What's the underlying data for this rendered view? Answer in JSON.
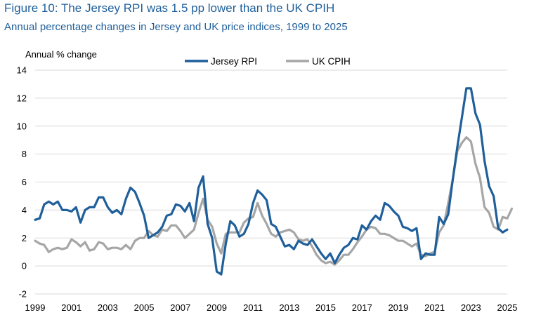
{
  "header": {
    "title": "Figure 10: The Jersey RPI was 1.5 pp lower than the UK CPIH",
    "subtitle": "Annual percentage changes in Jersey and UK price indices, 1999 to 2025"
  },
  "colors": {
    "title": "#1f5f9a",
    "jersey_rpi": "#1f5f9a",
    "uk_cpih": "#a6a6a6"
  },
  "chart_data": {
    "type": "line",
    "title": "Figure 10: The Jersey RPI was 1.5 pp lower than the UK CPIH",
    "subtitle": "Annual percentage changes in Jersey and UK price indices, 1999 to 2025",
    "ylabel": "Annual % change",
    "xlabel": "",
    "ylim": [
      -2,
      14
    ],
    "xlim": [
      1999,
      2025
    ],
    "yticks": [
      "-2",
      "0",
      "2",
      "4",
      "6",
      "8",
      "10",
      "12",
      "14"
    ],
    "xticks": [
      "1999",
      "2001",
      "2003",
      "2005",
      "2007",
      "2009",
      "2011",
      "2013",
      "2015",
      "2017",
      "2019",
      "2021",
      "2023",
      "2025"
    ],
    "grid": true,
    "legend_position": "top",
    "series": [
      {
        "name": "Jersey RPI",
        "color": "#1f5f9a",
        "points": [
          [
            1999.0,
            3.3
          ],
          [
            1999.25,
            3.4
          ],
          [
            1999.5,
            4.4
          ],
          [
            1999.75,
            4.6
          ],
          [
            2000.0,
            4.4
          ],
          [
            2000.25,
            4.6
          ],
          [
            2000.5,
            4.0
          ],
          [
            2000.75,
            4.0
          ],
          [
            2001.0,
            3.9
          ],
          [
            2001.25,
            4.2
          ],
          [
            2001.5,
            3.1
          ],
          [
            2001.75,
            4.0
          ],
          [
            2002.0,
            4.2
          ],
          [
            2002.25,
            4.2
          ],
          [
            2002.5,
            4.9
          ],
          [
            2002.75,
            4.9
          ],
          [
            2003.0,
            4.2
          ],
          [
            2003.25,
            3.8
          ],
          [
            2003.5,
            4.0
          ],
          [
            2003.75,
            3.7
          ],
          [
            2004.0,
            4.8
          ],
          [
            2004.25,
            5.6
          ],
          [
            2004.5,
            5.3
          ],
          [
            2004.75,
            4.5
          ],
          [
            2005.0,
            3.6
          ],
          [
            2005.25,
            2.0
          ],
          [
            2005.5,
            2.2
          ],
          [
            2005.75,
            2.4
          ],
          [
            2006.0,
            2.8
          ],
          [
            2006.25,
            3.6
          ],
          [
            2006.5,
            3.7
          ],
          [
            2006.75,
            4.4
          ],
          [
            2007.0,
            4.3
          ],
          [
            2007.25,
            3.9
          ],
          [
            2007.5,
            4.5
          ],
          [
            2007.75,
            3.2
          ],
          [
            2008.0,
            5.6
          ],
          [
            2008.25,
            6.4
          ],
          [
            2008.5,
            3.0
          ],
          [
            2008.75,
            2.0
          ],
          [
            2009.0,
            -0.4
          ],
          [
            2009.25,
            -0.6
          ],
          [
            2009.5,
            1.6
          ],
          [
            2009.75,
            3.2
          ],
          [
            2010.0,
            2.9
          ],
          [
            2010.25,
            2.1
          ],
          [
            2010.5,
            2.3
          ],
          [
            2010.75,
            3.0
          ],
          [
            2011.0,
            4.5
          ],
          [
            2011.25,
            5.4
          ],
          [
            2011.5,
            5.1
          ],
          [
            2011.75,
            4.7
          ],
          [
            2012.0,
            3.0
          ],
          [
            2012.25,
            2.8
          ],
          [
            2012.5,
            2.1
          ],
          [
            2012.75,
            1.4
          ],
          [
            2013.0,
            1.5
          ],
          [
            2013.25,
            1.2
          ],
          [
            2013.5,
            1.8
          ],
          [
            2013.75,
            1.6
          ],
          [
            2014.0,
            1.5
          ],
          [
            2014.25,
            1.9
          ],
          [
            2014.5,
            1.4
          ],
          [
            2014.75,
            0.9
          ],
          [
            2015.0,
            0.5
          ],
          [
            2015.25,
            0.9
          ],
          [
            2015.5,
            0.2
          ],
          [
            2015.75,
            0.8
          ],
          [
            2016.0,
            1.3
          ],
          [
            2016.25,
            1.5
          ],
          [
            2016.5,
            2.0
          ],
          [
            2016.75,
            1.9
          ],
          [
            2017.0,
            2.9
          ],
          [
            2017.25,
            2.6
          ],
          [
            2017.5,
            3.2
          ],
          [
            2017.75,
            3.6
          ],
          [
            2018.0,
            3.3
          ],
          [
            2018.25,
            4.5
          ],
          [
            2018.5,
            4.3
          ],
          [
            2018.75,
            3.9
          ],
          [
            2019.0,
            3.6
          ],
          [
            2019.25,
            2.8
          ],
          [
            2019.5,
            2.7
          ],
          [
            2019.75,
            2.5
          ],
          [
            2020.0,
            2.7
          ],
          [
            2020.25,
            0.5
          ],
          [
            2020.5,
            0.9
          ],
          [
            2020.75,
            0.8
          ],
          [
            2021.0,
            0.8
          ],
          [
            2021.25,
            3.5
          ],
          [
            2021.5,
            3.0
          ],
          [
            2021.75,
            3.7
          ],
          [
            2022.0,
            6.2
          ],
          [
            2022.25,
            8.5
          ],
          [
            2022.5,
            10.6
          ],
          [
            2022.75,
            12.7
          ],
          [
            2023.0,
            12.7
          ],
          [
            2023.25,
            10.9
          ],
          [
            2023.5,
            10.1
          ],
          [
            2023.75,
            7.5
          ],
          [
            2024.0,
            5.7
          ],
          [
            2024.25,
            5.0
          ],
          [
            2024.5,
            2.7
          ],
          [
            2024.75,
            2.4
          ],
          [
            2025.0,
            2.6
          ]
        ]
      },
      {
        "name": "UK CPIH",
        "color": "#a6a6a6",
        "points": [
          [
            1999.0,
            1.8
          ],
          [
            1999.25,
            1.6
          ],
          [
            1999.5,
            1.5
          ],
          [
            1999.75,
            1.0
          ],
          [
            2000.0,
            1.2
          ],
          [
            2000.25,
            1.3
          ],
          [
            2000.5,
            1.2
          ],
          [
            2000.75,
            1.3
          ],
          [
            2001.0,
            1.9
          ],
          [
            2001.25,
            1.7
          ],
          [
            2001.5,
            1.4
          ],
          [
            2001.75,
            1.7
          ],
          [
            2002.0,
            1.1
          ],
          [
            2002.25,
            1.2
          ],
          [
            2002.5,
            1.7
          ],
          [
            2002.75,
            1.6
          ],
          [
            2003.0,
            1.2
          ],
          [
            2003.25,
            1.3
          ],
          [
            2003.5,
            1.3
          ],
          [
            2003.75,
            1.2
          ],
          [
            2004.0,
            1.5
          ],
          [
            2004.25,
            1.2
          ],
          [
            2004.5,
            1.8
          ],
          [
            2004.75,
            2.0
          ],
          [
            2005.0,
            2.0
          ],
          [
            2005.25,
            2.5
          ],
          [
            2005.5,
            2.2
          ],
          [
            2005.75,
            2.1
          ],
          [
            2006.0,
            2.6
          ],
          [
            2006.25,
            2.5
          ],
          [
            2006.5,
            2.9
          ],
          [
            2006.75,
            2.9
          ],
          [
            2007.0,
            2.5
          ],
          [
            2007.25,
            2.0
          ],
          [
            2007.5,
            2.3
          ],
          [
            2007.75,
            2.6
          ],
          [
            2008.0,
            3.8
          ],
          [
            2008.25,
            4.8
          ],
          [
            2008.5,
            3.3
          ],
          [
            2008.75,
            2.8
          ],
          [
            2009.0,
            1.6
          ],
          [
            2009.25,
            0.9
          ],
          [
            2009.5,
            2.3
          ],
          [
            2009.75,
            2.4
          ],
          [
            2010.0,
            2.4
          ],
          [
            2010.25,
            2.4
          ],
          [
            2010.5,
            3.1
          ],
          [
            2010.75,
            3.4
          ],
          [
            2011.0,
            3.5
          ],
          [
            2011.25,
            4.5
          ],
          [
            2011.5,
            3.6
          ],
          [
            2011.75,
            3.0
          ],
          [
            2012.0,
            2.3
          ],
          [
            2012.25,
            2.1
          ],
          [
            2012.5,
            2.4
          ],
          [
            2012.75,
            2.5
          ],
          [
            2013.0,
            2.6
          ],
          [
            2013.25,
            2.4
          ],
          [
            2013.5,
            1.9
          ],
          [
            2013.75,
            1.8
          ],
          [
            2014.0,
            1.9
          ],
          [
            2014.25,
            1.4
          ],
          [
            2014.5,
            0.8
          ],
          [
            2014.75,
            0.4
          ],
          [
            2015.0,
            0.2
          ],
          [
            2015.25,
            0.3
          ],
          [
            2015.5,
            0.1
          ],
          [
            2015.75,
            0.4
          ],
          [
            2016.0,
            0.8
          ],
          [
            2016.25,
            0.8
          ],
          [
            2016.5,
            1.2
          ],
          [
            2016.75,
            1.7
          ],
          [
            2017.0,
            2.1
          ],
          [
            2017.25,
            2.6
          ],
          [
            2017.5,
            2.8
          ],
          [
            2017.75,
            2.7
          ],
          [
            2018.0,
            2.3
          ],
          [
            2018.25,
            2.3
          ],
          [
            2018.5,
            2.2
          ],
          [
            2018.75,
            2.0
          ],
          [
            2019.0,
            1.8
          ],
          [
            2019.25,
            1.8
          ],
          [
            2019.5,
            1.6
          ],
          [
            2019.75,
            1.4
          ],
          [
            2020.0,
            1.6
          ],
          [
            2020.25,
            0.8
          ],
          [
            2020.5,
            0.7
          ],
          [
            2020.75,
            0.9
          ],
          [
            2021.0,
            1.0
          ],
          [
            2021.25,
            2.4
          ],
          [
            2021.5,
            2.9
          ],
          [
            2021.75,
            4.5
          ],
          [
            2022.0,
            6.2
          ],
          [
            2022.25,
            8.2
          ],
          [
            2022.5,
            8.8
          ],
          [
            2022.75,
            9.2
          ],
          [
            2023.0,
            8.9
          ],
          [
            2023.25,
            7.3
          ],
          [
            2023.5,
            6.3
          ],
          [
            2023.75,
            4.2
          ],
          [
            2024.0,
            3.8
          ],
          [
            2024.25,
            2.8
          ],
          [
            2024.5,
            2.6
          ],
          [
            2024.75,
            3.5
          ],
          [
            2025.0,
            3.4
          ],
          [
            2025.25,
            4.1
          ]
        ]
      }
    ]
  }
}
